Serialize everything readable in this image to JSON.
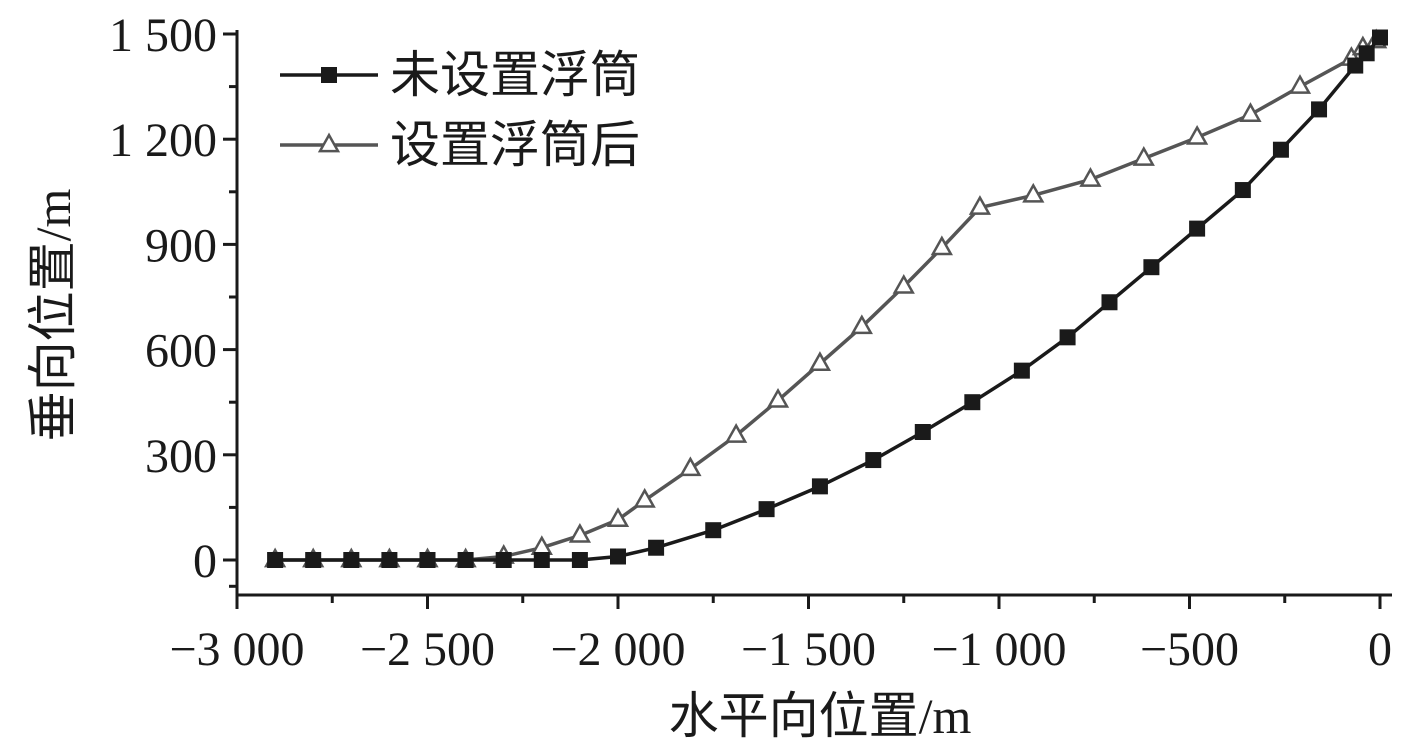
{
  "chart_data": {
    "type": "line",
    "xlabel": "水平向位置/m",
    "ylabel": "垂向位置/m",
    "xlim": [
      -3000,
      0
    ],
    "ylim": [
      -100,
      1500
    ],
    "x_ticks": [
      {
        "value": -3000,
        "label": "−3 000"
      },
      {
        "value": -2500,
        "label": "−2 500"
      },
      {
        "value": -2000,
        "label": "−2 000"
      },
      {
        "value": -1500,
        "label": "−1 500"
      },
      {
        "value": -1000,
        "label": "−1 000"
      },
      {
        "value": -500,
        "label": "−500"
      },
      {
        "value": 0,
        "label": "0"
      }
    ],
    "y_ticks": [
      {
        "value": 0,
        "label": "0"
      },
      {
        "value": 300,
        "label": "300"
      },
      {
        "value": 600,
        "label": "600"
      },
      {
        "value": 900,
        "label": "900"
      },
      {
        "value": 1200,
        "label": "1 200"
      },
      {
        "value": 1500,
        "label": "1 500"
      }
    ],
    "grid": false,
    "legend_position": "top-left",
    "series": [
      {
        "name": "未设置浮筒",
        "color": "#1a1a1a",
        "marker": "square-filled",
        "points": [
          [
            -2900,
            0
          ],
          [
            -2800,
            0
          ],
          [
            -2700,
            0
          ],
          [
            -2600,
            0
          ],
          [
            -2500,
            0
          ],
          [
            -2400,
            0
          ],
          [
            -2300,
            0
          ],
          [
            -2200,
            0
          ],
          [
            -2100,
            0
          ],
          [
            -2000,
            10
          ],
          [
            -1900,
            35
          ],
          [
            -1750,
            85
          ],
          [
            -1610,
            145
          ],
          [
            -1470,
            210
          ],
          [
            -1330,
            285
          ],
          [
            -1200,
            365
          ],
          [
            -1070,
            450
          ],
          [
            -940,
            540
          ],
          [
            -820,
            635
          ],
          [
            -710,
            735
          ],
          [
            -600,
            835
          ],
          [
            -480,
            945
          ],
          [
            -360,
            1055
          ],
          [
            -260,
            1170
          ],
          [
            -160,
            1285
          ],
          [
            -65,
            1410
          ],
          [
            -35,
            1445
          ],
          [
            0,
            1490
          ]
        ]
      },
      {
        "name": "设置浮筒后",
        "color": "#555555",
        "marker": "triangle-open",
        "points": [
          [
            -2900,
            0
          ],
          [
            -2800,
            0
          ],
          [
            -2700,
            0
          ],
          [
            -2600,
            0
          ],
          [
            -2500,
            0
          ],
          [
            -2400,
            0
          ],
          [
            -2300,
            10
          ],
          [
            -2200,
            35
          ],
          [
            -2100,
            70
          ],
          [
            -2000,
            115
          ],
          [
            -1930,
            170
          ],
          [
            -1810,
            260
          ],
          [
            -1690,
            355
          ],
          [
            -1580,
            455
          ],
          [
            -1470,
            560
          ],
          [
            -1360,
            665
          ],
          [
            -1250,
            780
          ],
          [
            -1150,
            890
          ],
          [
            -1050,
            1005
          ],
          [
            -910,
            1040
          ],
          [
            -760,
            1085
          ],
          [
            -620,
            1145
          ],
          [
            -480,
            1205
          ],
          [
            -340,
            1270
          ],
          [
            -210,
            1350
          ],
          [
            -75,
            1430
          ],
          [
            -45,
            1460
          ],
          [
            -10,
            1480
          ]
        ]
      }
    ]
  }
}
